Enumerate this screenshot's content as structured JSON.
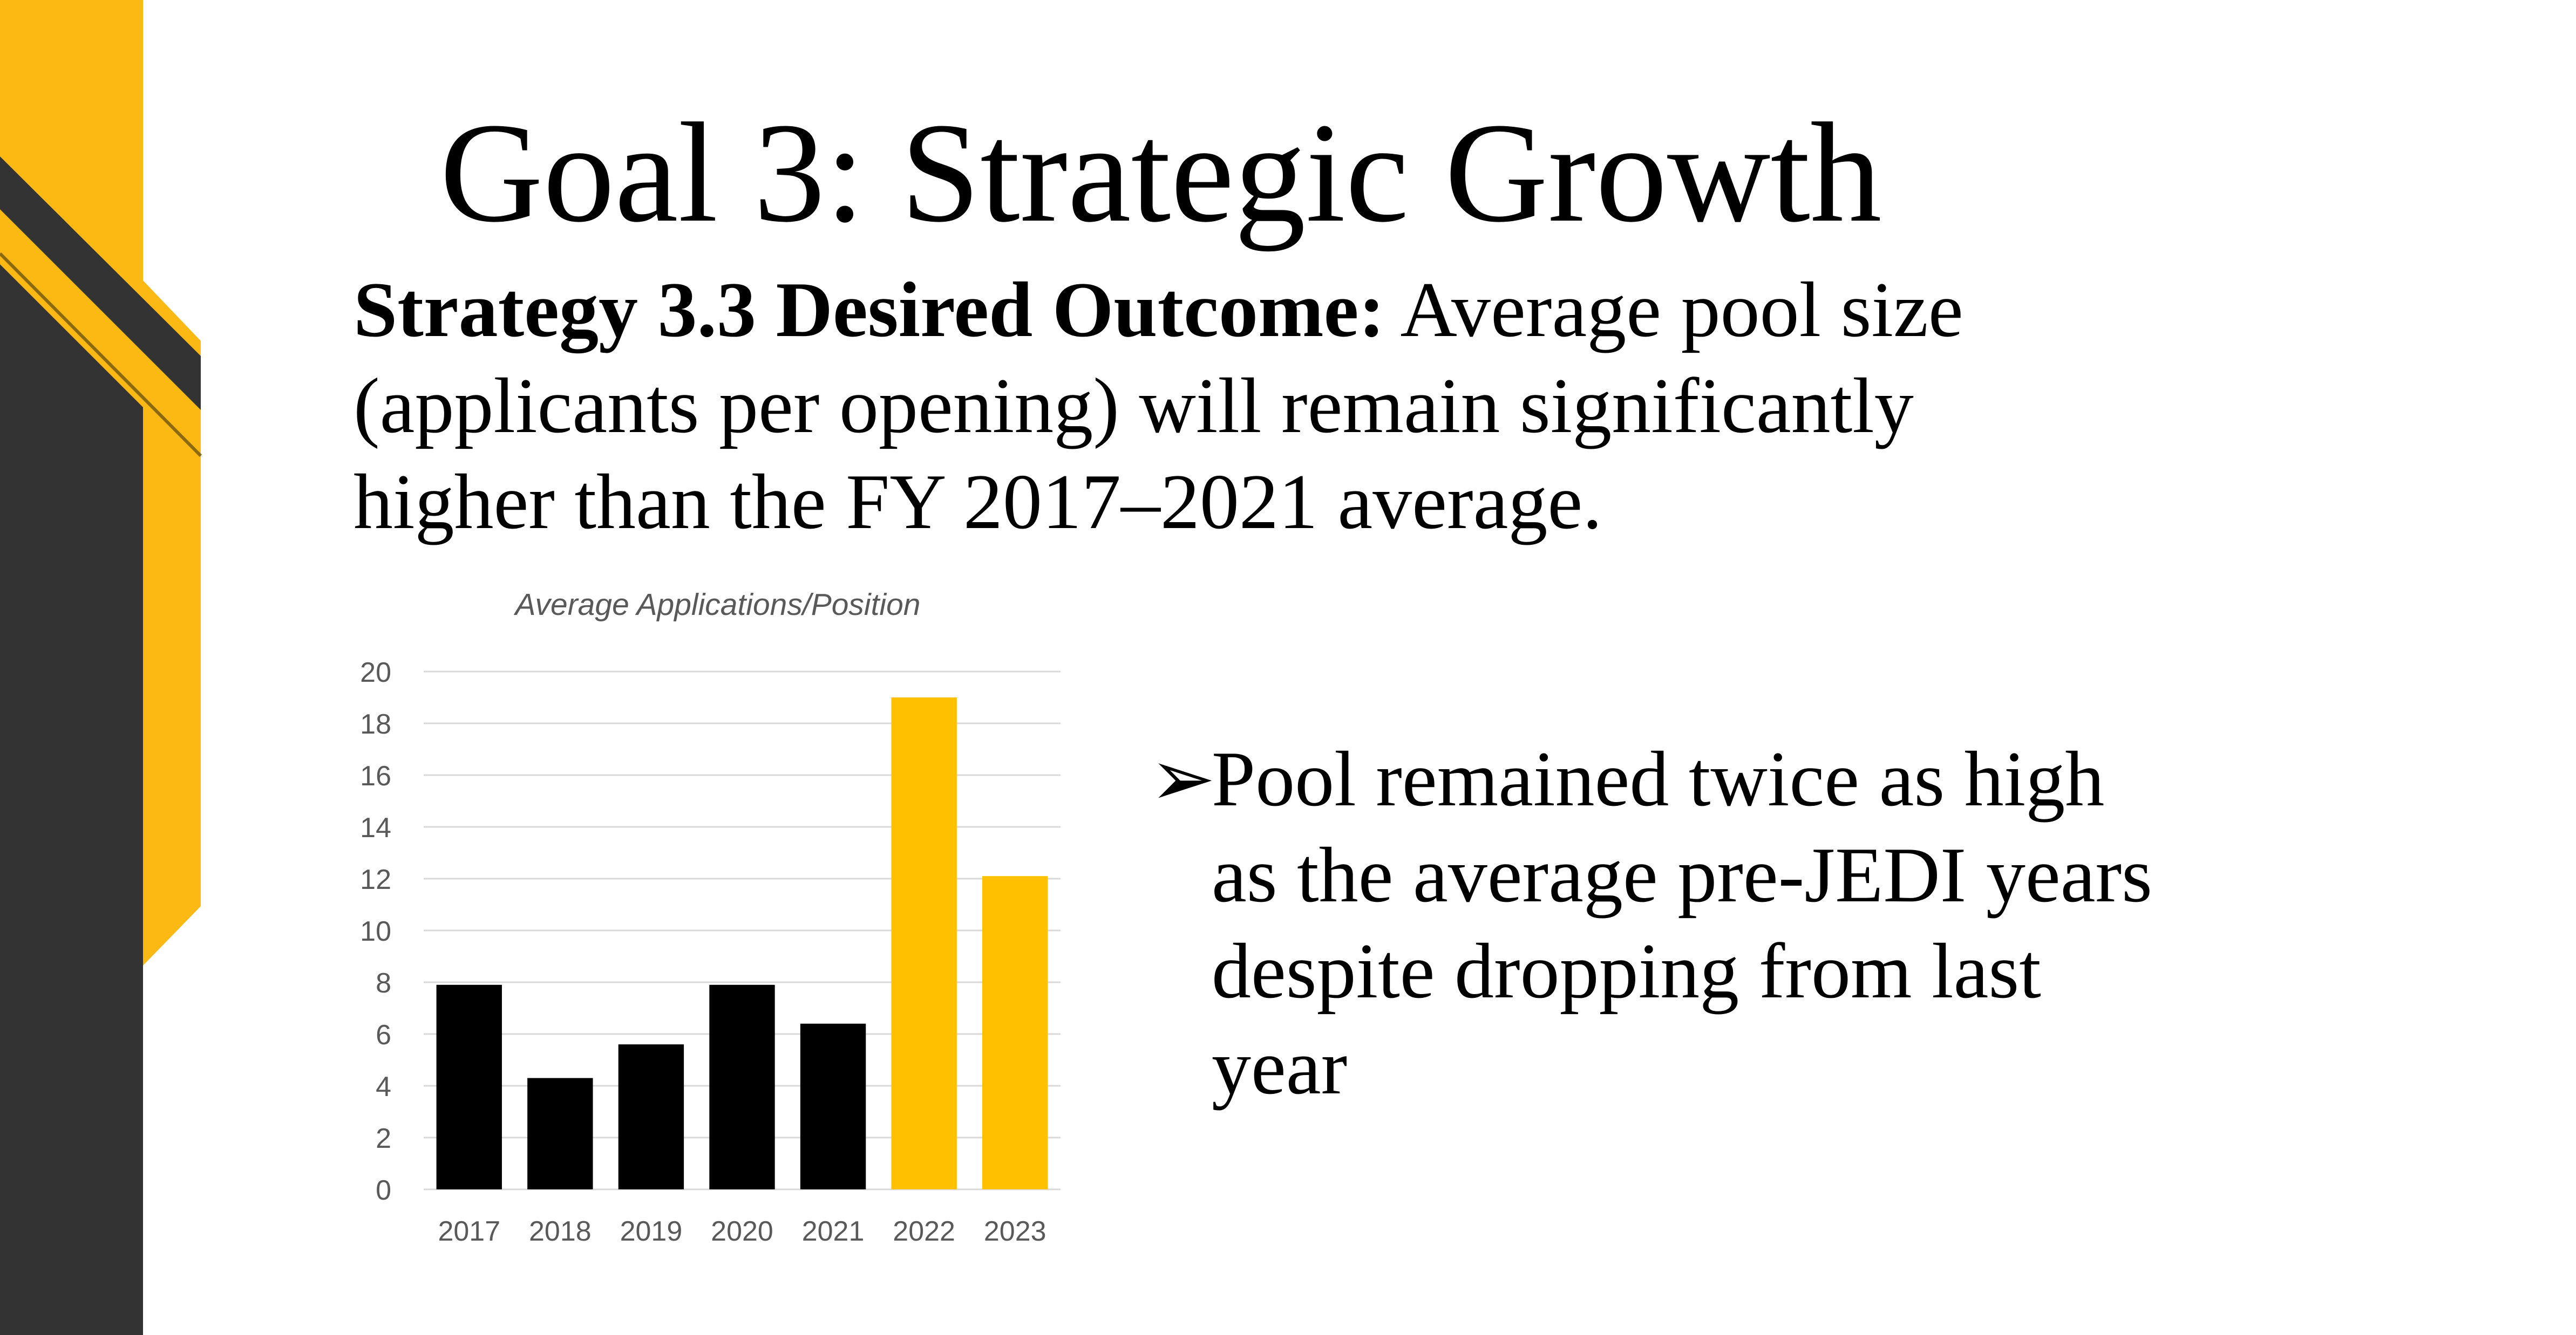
{
  "slide": {
    "title": "Goal 3:  Strategic Growth",
    "strategy_label": "Strategy 3.3 Desired Outcome:",
    "strategy_lines": [
      " Average pool size",
      "(applicants per opening) will remain significantly",
      "higher than the FY 2017–2021 average."
    ],
    "bullet_marker": "➢",
    "bullet_lines": [
      "Pool remained twice as high",
      "as the average pre-JEDI years",
      "despite dropping from last",
      "year"
    ]
  },
  "colors": {
    "accent_gold": "#FDB913",
    "dark_gray": "#333333",
    "bar_black": "#000000",
    "bar_gold": "#FFC000",
    "gridline": "#D9D9D9",
    "axis_text": "#595959"
  },
  "chart_data": {
    "type": "bar",
    "title": "Average Applications/Position",
    "categories": [
      "2017",
      "2018",
      "2019",
      "2020",
      "2021",
      "2022",
      "2023"
    ],
    "values": [
      7.9,
      4.3,
      5.6,
      7.9,
      6.4,
      19.0,
      12.1
    ],
    "bar_colors": [
      "#000000",
      "#000000",
      "#000000",
      "#000000",
      "#000000",
      "#FFC000",
      "#FFC000"
    ],
    "ylim": [
      0,
      20
    ],
    "yticks": [
      0,
      2,
      4,
      6,
      8,
      10,
      12,
      14,
      16,
      18,
      20
    ],
    "xlabel": "",
    "ylabel": "",
    "grid": true,
    "legend": "none"
  }
}
